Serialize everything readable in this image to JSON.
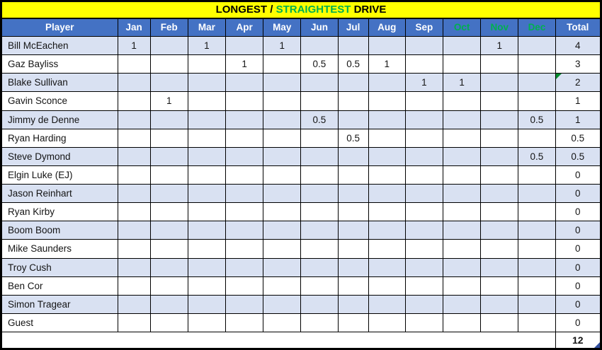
{
  "title": {
    "part_black_1": "LONGEST / ",
    "part_green": "STRAIGHTEST",
    "part_black_2": " DRIVE"
  },
  "columns": [
    {
      "label": "Player",
      "highlight": false
    },
    {
      "label": "Jan",
      "highlight": false
    },
    {
      "label": "Feb",
      "highlight": false
    },
    {
      "label": "Mar",
      "highlight": false
    },
    {
      "label": "Apr",
      "highlight": false
    },
    {
      "label": "May",
      "highlight": false
    },
    {
      "label": "Jun",
      "highlight": false
    },
    {
      "label": "Jul",
      "highlight": false
    },
    {
      "label": "Aug",
      "highlight": false
    },
    {
      "label": "Sep",
      "highlight": false
    },
    {
      "label": "Oct",
      "highlight": true
    },
    {
      "label": "Nov",
      "highlight": true
    },
    {
      "label": "Dec",
      "highlight": true
    },
    {
      "label": "Total",
      "highlight": false
    }
  ],
  "rows": [
    {
      "player": "Bill McEachen",
      "months": [
        "1",
        "",
        "1",
        "",
        "1",
        "",
        "",
        "",
        "",
        "",
        "1",
        ""
      ],
      "total": "4"
    },
    {
      "player": "Gaz Bayliss",
      "months": [
        "",
        "",
        "",
        "1",
        "",
        "0.5",
        "0.5",
        "1",
        "",
        "",
        "",
        ""
      ],
      "total": "3"
    },
    {
      "player": "Blake Sullivan",
      "months": [
        "",
        "",
        "",
        "",
        "",
        "",
        "",
        "",
        "1",
        "1",
        "",
        ""
      ],
      "total": "2",
      "error_indicator": true
    },
    {
      "player": "Gavin Sconce",
      "months": [
        "",
        "1",
        "",
        "",
        "",
        "",
        "",
        "",
        "",
        "",
        "",
        ""
      ],
      "total": "1"
    },
    {
      "player": "Jimmy de Denne",
      "months": [
        "",
        "",
        "",
        "",
        "",
        "0.5",
        "",
        "",
        "",
        "",
        "",
        "0.5"
      ],
      "total": "1"
    },
    {
      "player": "Ryan Harding",
      "months": [
        "",
        "",
        "",
        "",
        "",
        "",
        "0.5",
        "",
        "",
        "",
        "",
        ""
      ],
      "total": "0.5"
    },
    {
      "player": "Steve Dymond",
      "months": [
        "",
        "",
        "",
        "",
        "",
        "",
        "",
        "",
        "",
        "",
        "",
        "0.5"
      ],
      "total": "0.5"
    },
    {
      "player": "Elgin Luke (EJ)",
      "months": [
        "",
        "",
        "",
        "",
        "",
        "",
        "",
        "",
        "",
        "",
        "",
        ""
      ],
      "total": "0"
    },
    {
      "player": "Jason Reinhart",
      "months": [
        "",
        "",
        "",
        "",
        "",
        "",
        "",
        "",
        "",
        "",
        "",
        ""
      ],
      "total": "0"
    },
    {
      "player": "Ryan Kirby",
      "months": [
        "",
        "",
        "",
        "",
        "",
        "",
        "",
        "",
        "",
        "",
        "",
        ""
      ],
      "total": "0"
    },
    {
      "player": "Boom Boom",
      "months": [
        "",
        "",
        "",
        "",
        "",
        "",
        "",
        "",
        "",
        "",
        "",
        ""
      ],
      "total": "0"
    },
    {
      "player": "Mike Saunders",
      "months": [
        "",
        "",
        "",
        "",
        "",
        "",
        "",
        "",
        "",
        "",
        "",
        ""
      ],
      "total": "0"
    },
    {
      "player": "Troy Cush",
      "months": [
        "",
        "",
        "",
        "",
        "",
        "",
        "",
        "",
        "",
        "",
        "",
        ""
      ],
      "total": "0"
    },
    {
      "player": "Ben Cor",
      "months": [
        "",
        "",
        "",
        "",
        "",
        "",
        "",
        "",
        "",
        "",
        "",
        ""
      ],
      "total": "0"
    },
    {
      "player": "Simon Tragear",
      "months": [
        "",
        "",
        "",
        "",
        "",
        "",
        "",
        "",
        "",
        "",
        "",
        ""
      ],
      "total": "0"
    },
    {
      "player": "Guest",
      "months": [
        "",
        "",
        "",
        "",
        "",
        "",
        "",
        "",
        "",
        "",
        "",
        ""
      ],
      "total": "0"
    }
  ],
  "footer": {
    "grand_total": "12",
    "comment_indicator": true
  },
  "colors": {
    "title_bg": "#FFFF00",
    "title_text": "#000000",
    "accent_green": "#00B050",
    "header_bg": "#4472C4",
    "header_text": "#FFFFFF",
    "band_row_bg": "#D9E1F2",
    "grid_border": "#000000",
    "error_indicator_green": "#008B2E",
    "comment_indicator_blue": "#2F4D9E"
  }
}
